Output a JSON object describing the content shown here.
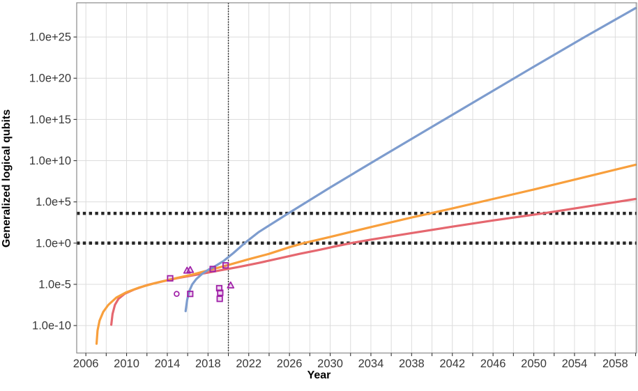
{
  "chart_data": {
    "type": "line",
    "title": "",
    "xlabel": "Year",
    "ylabel": "Generalized logical qubits",
    "x_domain": [
      2005.1,
      2060.1
    ],
    "y_log10_domain": [
      -13.33,
      29.15
    ],
    "x_ticks_labeled": [
      2006,
      2010,
      2014,
      2018,
      2022,
      2026,
      2030,
      2034,
      2038,
      2042,
      2046,
      2050,
      2054,
      2058
    ],
    "x_ticks_minor": [
      2008,
      2012,
      2016,
      2020,
      2024,
      2028,
      2032,
      2036,
      2040,
      2044,
      2048,
      2052,
      2056,
      2060
    ],
    "y_ticks": [
      {
        "label": "1.0e+25",
        "log10": 25
      },
      {
        "label": "1.0e+20",
        "log10": 20
      },
      {
        "label": "1.0e+15",
        "log10": 15
      },
      {
        "label": "1.0e+10",
        "log10": 10
      },
      {
        "label": "1.0e+5",
        "log10": 5
      },
      {
        "label": "1.0e+0",
        "log10": 0
      },
      {
        "label": "1.0e-5",
        "log10": -5
      },
      {
        "label": "1.0e-10",
        "log10": -10
      }
    ],
    "grid": {
      "color": "#dcdcdc",
      "show": true
    },
    "threshold_lines": [
      {
        "name": "upper-threshold",
        "value": 4100,
        "log10": 3.61,
        "color": "#262626",
        "style": "dotted"
      },
      {
        "name": "lower-threshold",
        "value": 1,
        "log10": 0,
        "color": "#262626",
        "style": "dotted"
      }
    ],
    "vertical_line": {
      "year": 2020,
      "color": "#262626",
      "style": "dotted"
    },
    "series": [
      {
        "name": "red-extrapolation-line",
        "color": "#e5676f",
        "points": [
          [
            2008.5,
            -9.9
          ],
          [
            2008.62,
            -8.6
          ],
          [
            2008.85,
            -7.5
          ],
          [
            2009.2,
            -6.75
          ],
          [
            2009.8,
            -6.15
          ],
          [
            2010.8,
            -5.6
          ],
          [
            2012.0,
            -5.1
          ],
          [
            2013.5,
            -4.65
          ],
          [
            2015.0,
            -4.25
          ],
          [
            2017.0,
            -3.8
          ],
          [
            2019.0,
            -3.35
          ],
          [
            2021.0,
            -2.9
          ],
          [
            2023.0,
            -2.4
          ],
          [
            2025.0,
            -1.85
          ],
          [
            2027.0,
            -1.3
          ],
          [
            2029.0,
            -0.8
          ],
          [
            2030.5,
            -0.4
          ],
          [
            2032.05,
            0
          ],
          [
            2034.0,
            0.42
          ],
          [
            2038.0,
            1.22
          ],
          [
            2042.0,
            2.0
          ],
          [
            2046.0,
            2.75
          ],
          [
            2051.0,
            3.63
          ],
          [
            2055.0,
            4.4
          ],
          [
            2060.0,
            5.35
          ]
        ]
      },
      {
        "name": "orange-extrapolation-line",
        "color": "#f89f3c",
        "points": [
          [
            2007.05,
            -12.2
          ],
          [
            2007.15,
            -10.6
          ],
          [
            2007.35,
            -9.4
          ],
          [
            2007.7,
            -8.35
          ],
          [
            2008.2,
            -7.5
          ],
          [
            2009.0,
            -6.6
          ],
          [
            2010.0,
            -5.95
          ],
          [
            2011.2,
            -5.4
          ],
          [
            2012.8,
            -4.85
          ],
          [
            2014.5,
            -4.35
          ],
          [
            2016.5,
            -3.8
          ],
          [
            2018.5,
            -3.15
          ],
          [
            2020.0,
            -2.65
          ],
          [
            2022.0,
            -1.95
          ],
          [
            2024.0,
            -1.3
          ],
          [
            2026.0,
            -0.5
          ],
          [
            2027.4,
            0
          ],
          [
            2030.0,
            0.75
          ],
          [
            2034.0,
            1.95
          ],
          [
            2038.0,
            3.1
          ],
          [
            2042.0,
            4.2
          ],
          [
            2046.0,
            5.35
          ],
          [
            2050.0,
            6.5
          ],
          [
            2055.0,
            8.0
          ],
          [
            2060.0,
            9.5
          ]
        ]
      },
      {
        "name": "blue-extrapolation-line",
        "color": "#7d9cce",
        "points": [
          [
            2015.8,
            -8.25
          ],
          [
            2015.95,
            -6.9
          ],
          [
            2016.15,
            -5.85
          ],
          [
            2016.45,
            -5.0
          ],
          [
            2016.85,
            -4.35
          ],
          [
            2017.4,
            -3.75
          ],
          [
            2018.0,
            -3.25
          ],
          [
            2018.7,
            -2.8
          ],
          [
            2019.5,
            -2.2
          ],
          [
            2020.5,
            -1.2
          ],
          [
            2021.6,
            0
          ],
          [
            2023.0,
            1.35
          ],
          [
            2026.0,
            3.7
          ],
          [
            2030.0,
            6.75
          ],
          [
            2035.0,
            10.45
          ],
          [
            2040.0,
            14.1
          ],
          [
            2045.0,
            17.75
          ],
          [
            2050.0,
            21.4
          ],
          [
            2055.0,
            25.0
          ],
          [
            2060.0,
            28.5
          ]
        ]
      }
    ],
    "scatter": [
      {
        "name": "square-data-points",
        "marker": "square",
        "color": "#a020a8",
        "points": [
          [
            2014.28,
            -4.27
          ],
          [
            2016.25,
            -6.16
          ],
          [
            2018.46,
            -3.14
          ],
          [
            2019.73,
            -2.7
          ],
          [
            2019.1,
            -5.47
          ],
          [
            2019.2,
            -6.02
          ],
          [
            2019.15,
            -6.76
          ]
        ]
      },
      {
        "name": "triangle-data-points",
        "marker": "triangle",
        "color": "#a020a8",
        "points": [
          [
            2015.94,
            -3.34
          ],
          [
            2016.25,
            -3.25
          ],
          [
            2020.22,
            -5.13
          ]
        ]
      },
      {
        "name": "circle-data-points",
        "marker": "circle",
        "color": "#a020a8",
        "points": [
          [
            2014.92,
            -6.16
          ]
        ]
      }
    ],
    "panel": {
      "border_color": "#8a8a8a",
      "background": "#ffffff",
      "tick_color": "#333333",
      "tick_label_color": "#383838"
    }
  }
}
